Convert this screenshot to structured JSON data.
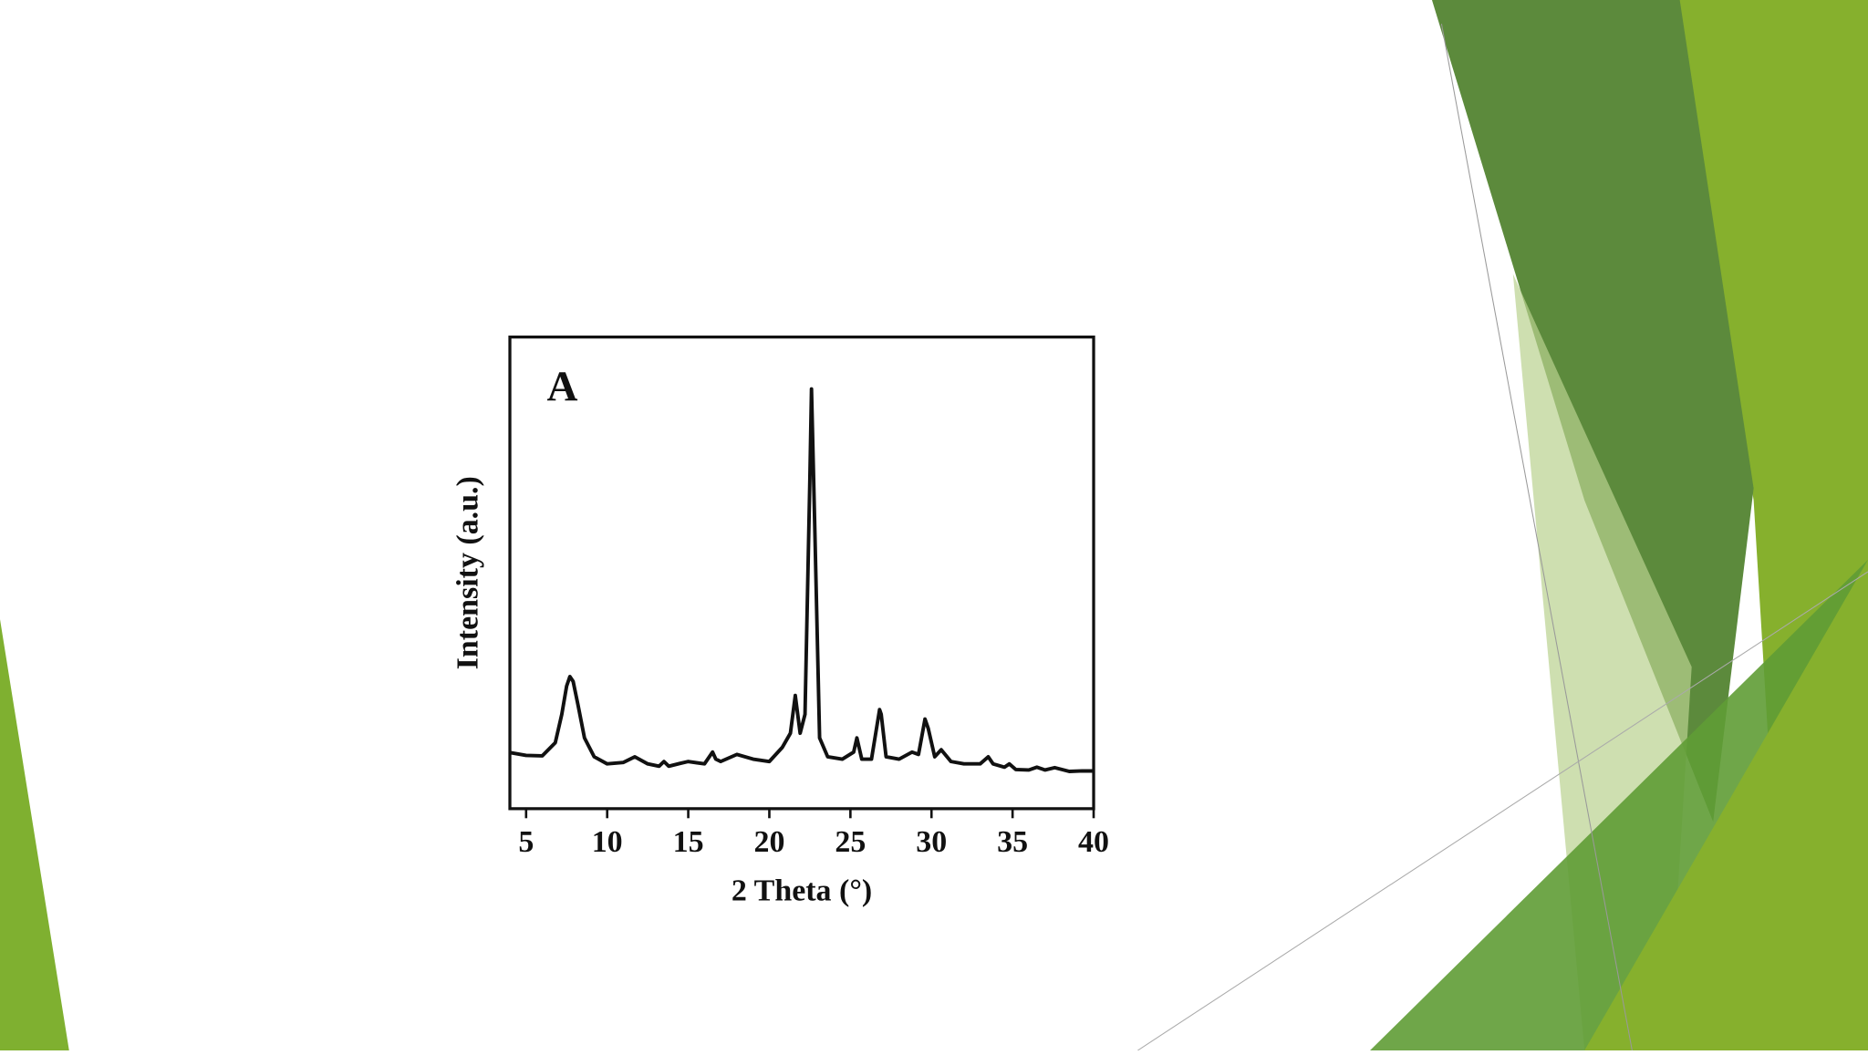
{
  "chart_data": {
    "type": "line",
    "annotation": "A",
    "x_label": "2 Theta (°)",
    "y_label": "Intensity (a.u.)",
    "x": [
      4,
      5,
      6,
      6.8,
      7.2,
      7.5,
      7.7,
      7.9,
      8.2,
      8.6,
      9.2,
      10,
      11,
      11.7,
      12.5,
      13.2,
      13.5,
      13.8,
      14.5,
      15,
      16,
      16.5,
      16.7,
      17,
      18,
      19,
      20,
      20.8,
      21.3,
      21.6,
      21.9,
      22.2,
      22.5,
      22.6,
      22.8,
      23.1,
      23.6,
      24.5,
      25.2,
      25.4,
      25.7,
      26.3,
      26.8,
      26.9,
      27.2,
      28,
      28.8,
      29.2,
      29.6,
      29.8,
      30.2,
      30.6,
      31.2,
      32,
      33,
      33.5,
      33.8,
      34.5,
      34.8,
      35.2,
      36,
      36.5,
      37,
      37.6,
      38.5,
      39.3,
      40
    ],
    "values": [
      11.9,
      11.3,
      11.2,
      14,
      20,
      26,
      28,
      27,
      22,
      15,
      11,
      9.5,
      9.8,
      11,
      9.5,
      9,
      10,
      9,
      9.6,
      10,
      9.5,
      12,
      10.5,
      10,
      11.5,
      10.5,
      10,
      13,
      16,
      24,
      16,
      20,
      70,
      89,
      60,
      15,
      11,
      10.5,
      12,
      15,
      10.5,
      10.5,
      21,
      20,
      11,
      10.5,
      12,
      11.5,
      19,
      17,
      11,
      12.5,
      10,
      9.5,
      9.5,
      11,
      9.5,
      8.8,
      9.5,
      8.3,
      8.2,
      8.8,
      8.2,
      8.7,
      7.9,
      8,
      8
    ],
    "color": "#111111",
    "xlim": [
      4,
      40
    ],
    "xticks": [
      5,
      10,
      15,
      20,
      25,
      30,
      35,
      40
    ],
    "ylim": [
      0,
      100
    ]
  }
}
